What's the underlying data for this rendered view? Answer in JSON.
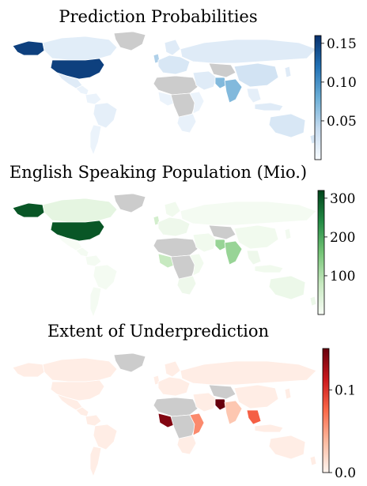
{
  "maps": [
    {
      "id": "prediction",
      "title": "Prediction Probabilities",
      "colormap": [
        "#f7fbff",
        "#c6dbef",
        "#6baed6",
        "#2171b5",
        "#08306b"
      ],
      "colorbar": {
        "min": 0.0,
        "max": 0.16,
        "ticks": [
          0.05,
          0.1,
          0.15
        ],
        "tick_labels": [
          "0.05",
          "0.10",
          "0.15"
        ]
      },
      "regions": {
        "greenland": 0.0,
        "alaska": 0.15,
        "canada": 0.018,
        "usa": 0.15,
        "mexico": 0.02,
        "central_america": 0.01,
        "south_america": 0.01,
        "brazil": 0.015,
        "europe": 0.025,
        "russia": 0.02,
        "north_africa": 0.0,
        "west_africa": 0.01,
        "central_africa": 0.0,
        "east_africa": 0.01,
        "southern_africa": 0.012,
        "middle_east": 0.02,
        "central_asia": 0.0,
        "india": 0.07,
        "china": 0.03,
        "se_asia": 0.015,
        "indonesia": 0.02,
        "australia": 0.025,
        "japan": 0.02,
        "uk": 0.05,
        "scandinavia": 0.02
      }
    },
    {
      "id": "english",
      "title": "English Speaking Population (Mio.)",
      "colormap": [
        "#f7fcf5",
        "#c7e9c0",
        "#74c476",
        "#238b45",
        "#00441b"
      ],
      "colorbar": {
        "min": 0,
        "max": 320,
        "ticks": [
          100,
          200,
          300
        ],
        "tick_labels": [
          "100",
          "200",
          "300"
        ]
      },
      "regions": {
        "greenland": 0,
        "alaska": 300,
        "canada": 30,
        "usa": 300,
        "mexico": 0,
        "central_america": 5,
        "south_america": 5,
        "brazil": 5,
        "europe": 15,
        "russia": 5,
        "north_africa": 0,
        "west_africa": 80,
        "central_africa": 0,
        "east_africa": 10,
        "southern_africa": 15,
        "middle_east": 10,
        "central_asia": 0,
        "india": 125,
        "china": 10,
        "se_asia": 15,
        "indonesia": 10,
        "australia": 18,
        "japan": 8,
        "uk": 60,
        "scandinavia": 10
      }
    },
    {
      "id": "underprediction",
      "title": "Extent of Underprediction",
      "colormap": [
        "#fff5f0",
        "#fcbba1",
        "#fb6a4a",
        "#cb181d",
        "#67000d"
      ],
      "colorbar": {
        "min": 0.0,
        "max": 0.15,
        "ticks": [
          0.0,
          0.1
        ],
        "tick_labels": [
          "0.0",
          "0.1"
        ]
      },
      "regions": {
        "greenland": 0.0,
        "alaska": 0.005,
        "canada": 0.005,
        "usa": 0.005,
        "mexico": 0.005,
        "central_america": 0.005,
        "south_america": 0.005,
        "brazil": 0.005,
        "europe": 0.005,
        "russia": 0.005,
        "north_africa": 0.0,
        "west_africa": 0.14,
        "central_africa": 0.0,
        "east_africa": 0.06,
        "southern_africa": 0.005,
        "middle_east": 0.005,
        "central_asia": 0.0,
        "india": 0.03,
        "pakistan": 0.15,
        "china": 0.005,
        "se_asia": 0.08,
        "indonesia": 0.005,
        "australia": 0.005,
        "japan": 0.005,
        "uk": 0.005,
        "scandinavia": 0.005
      }
    }
  ]
}
